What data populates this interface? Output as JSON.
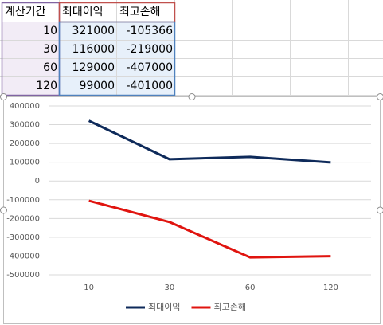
{
  "table": {
    "header": [
      "계산기간",
      "최대이익",
      "최고손해"
    ],
    "rows": [
      [
        10,
        321000,
        -105366
      ],
      [
        30,
        116000,
        -219000
      ],
      [
        60,
        129000,
        -407000
      ],
      [
        120,
        99000,
        -401000
      ]
    ]
  },
  "chart_data": {
    "type": "line",
    "categories": [
      "10",
      "30",
      "60",
      "120"
    ],
    "series": [
      {
        "name": "최대이익",
        "color": "#0e2a5a",
        "values": [
          321000,
          116000,
          129000,
          99000
        ]
      },
      {
        "name": "최고손해",
        "color": "#e0140f",
        "values": [
          -105366,
          -219000,
          -407000,
          -401000
        ]
      }
    ],
    "ylim": [
      -500000,
      400000
    ],
    "yticks": [
      -500000,
      -400000,
      -300000,
      -200000,
      -100000,
      0,
      100000,
      200000,
      300000,
      400000
    ],
    "grid": true,
    "legend": "bottom"
  }
}
